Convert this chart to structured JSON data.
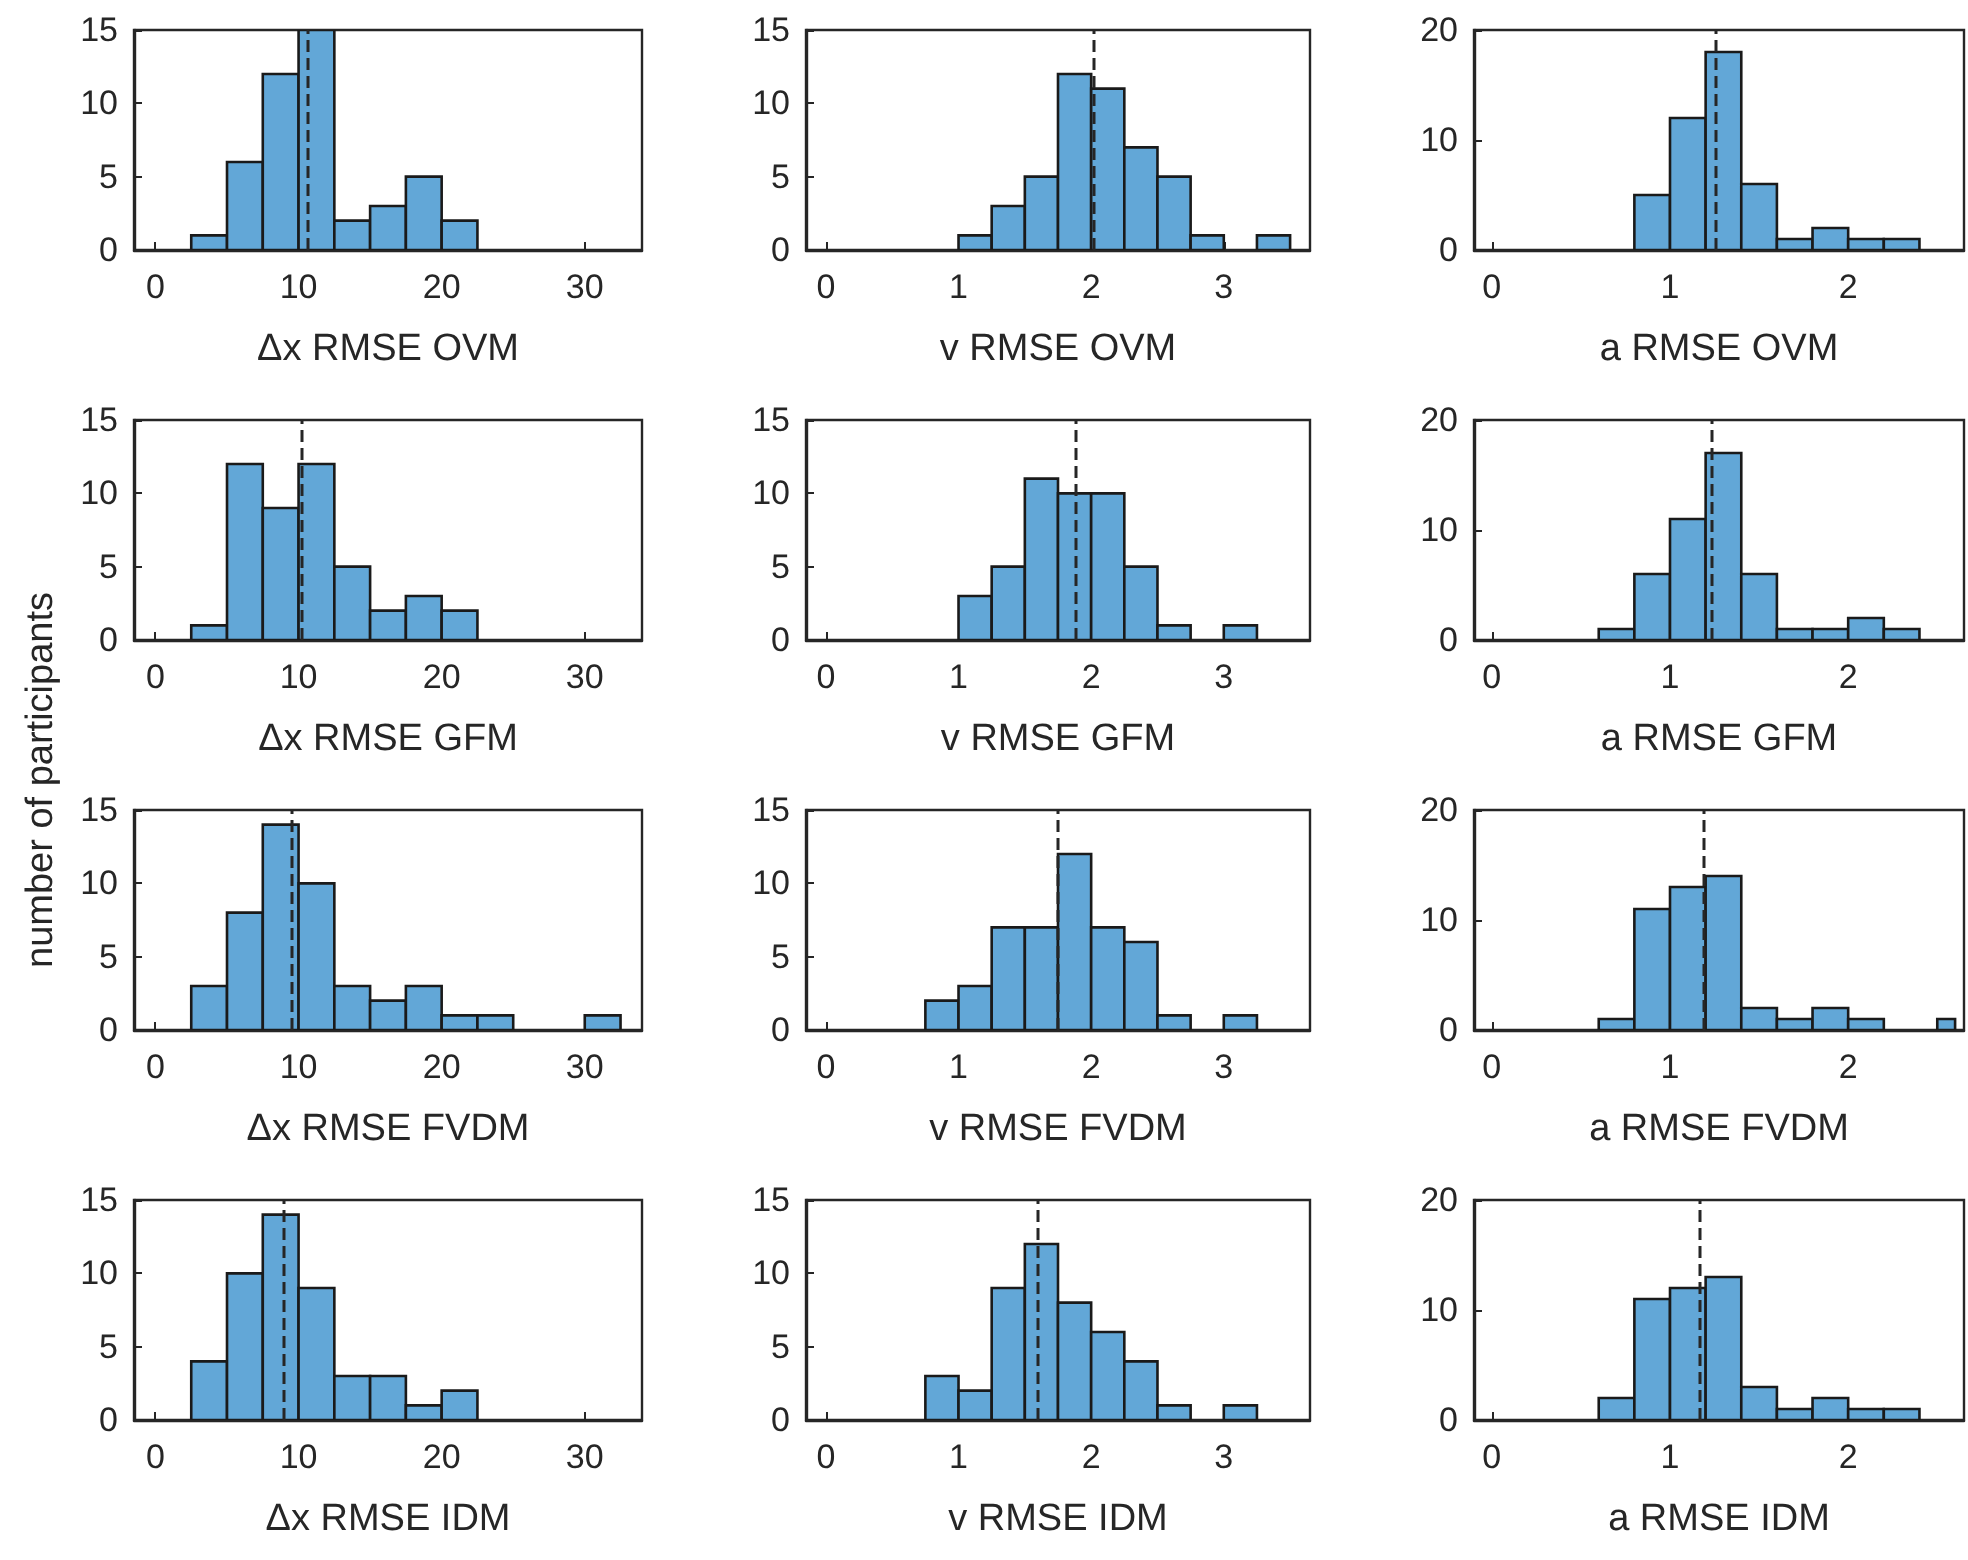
{
  "chart_data": [
    {
      "type": "histogram",
      "xlabel": "Δx RMSE OVM",
      "bins": [
        2.5,
        5,
        7.5,
        10,
        12.5,
        15,
        17.5,
        20,
        22.5
      ],
      "values": [
        1,
        6,
        12,
        15,
        2,
        3,
        5,
        2
      ],
      "color": "#62a7d7",
      "xlim": [
        -1.5,
        34
      ],
      "xticks": [
        0,
        10,
        20,
        30
      ],
      "ylim": [
        0,
        15
      ],
      "yticks": [
        0,
        5,
        10,
        15
      ],
      "ref_lines": [
        {
          "axis": "x",
          "value": 10.6,
          "line_style": "dashed",
          "color": "#262626"
        }
      ]
    },
    {
      "type": "histogram",
      "xlabel": "v RMSE OVM",
      "bins": [
        1,
        1.25,
        1.5,
        1.75,
        2,
        2.25,
        2.5,
        2.75,
        3,
        3.25,
        3.5
      ],
      "values": [
        1,
        3,
        5,
        12,
        11,
        7,
        5,
        1,
        0,
        1
      ],
      "color": "#62a7d7",
      "xlim": [
        -0.15,
        3.65
      ],
      "xticks": [
        0,
        1,
        2,
        3
      ],
      "ylim": [
        0,
        15
      ],
      "yticks": [
        0,
        5,
        10,
        15
      ],
      "ref_lines": [
        {
          "axis": "x",
          "value": 2.02,
          "line_style": "dashed",
          "color": "#262626"
        }
      ]
    },
    {
      "type": "histogram",
      "xlabel": "a RMSE OVM",
      "bins": [
        0.8,
        1,
        1.2,
        1.4,
        1.6,
        1.8,
        2,
        2.2,
        2.4
      ],
      "values": [
        5,
        12,
        18,
        6,
        1,
        2,
        1,
        1
      ],
      "color": "#62a7d7",
      "xlim": [
        -0.1,
        2.65
      ],
      "xticks": [
        0,
        1,
        2
      ],
      "ylim": [
        0,
        20
      ],
      "yticks": [
        0,
        10,
        20
      ],
      "ref_lines": [
        {
          "axis": "x",
          "value": 1.26,
          "line_style": "dashed",
          "color": "#262626"
        }
      ]
    },
    {
      "type": "histogram",
      "xlabel": "Δx RMSE GFM",
      "bins": [
        2.5,
        5,
        7.5,
        10,
        12.5,
        15,
        17.5,
        20,
        22.5
      ],
      "values": [
        1,
        12,
        9,
        12,
        5,
        2,
        3,
        2
      ],
      "color": "#62a7d7",
      "xlim": [
        -1.5,
        34
      ],
      "xticks": [
        0,
        10,
        20,
        30
      ],
      "ylim": [
        0,
        15
      ],
      "yticks": [
        0,
        5,
        10,
        15
      ],
      "ref_lines": [
        {
          "axis": "x",
          "value": 10.2,
          "line_style": "dashed",
          "color": "#262626"
        }
      ]
    },
    {
      "type": "histogram",
      "xlabel": "v RMSE GFM",
      "bins": [
        1,
        1.25,
        1.5,
        1.75,
        2,
        2.25,
        2.5,
        2.75,
        3,
        3.25
      ],
      "values": [
        3,
        5,
        11,
        10,
        10,
        5,
        1,
        0,
        1
      ],
      "color": "#62a7d7",
      "xlim": [
        -0.15,
        3.65
      ],
      "xticks": [
        0,
        1,
        2,
        3
      ],
      "ylim": [
        0,
        15
      ],
      "yticks": [
        0,
        5,
        10,
        15
      ],
      "ref_lines": [
        {
          "axis": "x",
          "value": 1.88,
          "line_style": "dashed",
          "color": "#262626"
        }
      ]
    },
    {
      "type": "histogram",
      "xlabel": "a RMSE GFM",
      "bins": [
        0.6,
        0.8,
        1,
        1.2,
        1.4,
        1.6,
        1.8,
        2,
        2.2,
        2.4
      ],
      "values": [
        1,
        6,
        11,
        17,
        6,
        1,
        1,
        2,
        1
      ],
      "color": "#62a7d7",
      "xlim": [
        -0.1,
        2.65
      ],
      "xticks": [
        0,
        1,
        2
      ],
      "ylim": [
        0,
        20
      ],
      "yticks": [
        0,
        10,
        20
      ],
      "ref_lines": [
        {
          "axis": "x",
          "value": 1.23,
          "line_style": "dashed",
          "color": "#262626"
        }
      ]
    },
    {
      "type": "histogram",
      "xlabel": "Δx RMSE FVDM",
      "ylabel": "number of participants",
      "bins": [
        2.5,
        5,
        7.5,
        10,
        12.5,
        15,
        17.5,
        20,
        22.5,
        25,
        27.5,
        30,
        32.5
      ],
      "values": [
        3,
        8,
        14,
        10,
        3,
        2,
        3,
        1,
        1,
        0,
        0,
        1
      ],
      "color": "#62a7d7",
      "xlim": [
        -1.5,
        34
      ],
      "xticks": [
        0,
        10,
        20,
        30
      ],
      "ylim": [
        0,
        15
      ],
      "yticks": [
        0,
        5,
        10,
        15
      ],
      "ref_lines": [
        {
          "axis": "x",
          "value": 9.5,
          "line_style": "dashed",
          "color": "#262626"
        }
      ]
    },
    {
      "type": "histogram",
      "xlabel": "v RMSE FVDM",
      "bins": [
        0.75,
        1,
        1.25,
        1.5,
        1.75,
        2,
        2.25,
        2.5,
        2.75,
        3,
        3.25
      ],
      "values": [
        2,
        3,
        7,
        7,
        12,
        7,
        6,
        1,
        0,
        1
      ],
      "color": "#62a7d7",
      "xlim": [
        -0.15,
        3.65
      ],
      "xticks": [
        0,
        1,
        2,
        3
      ],
      "ylim": [
        0,
        15
      ],
      "yticks": [
        0,
        5,
        10,
        15
      ],
      "ref_lines": [
        {
          "axis": "x",
          "value": 1.75,
          "line_style": "dashed",
          "color": "#262626"
        }
      ]
    },
    {
      "type": "histogram",
      "xlabel": "a RMSE FVDM",
      "bins": [
        0.6,
        0.8,
        1,
        1.2,
        1.4,
        1.6,
        1.8,
        2,
        2.2,
        2.5,
        2.6
      ],
      "values": [
        1,
        11,
        13,
        14,
        2,
        1,
        2,
        1,
        0,
        1
      ],
      "color": "#62a7d7",
      "xlim": [
        -0.1,
        2.65
      ],
      "xticks": [
        0,
        1,
        2
      ],
      "ylim": [
        0,
        20
      ],
      "yticks": [
        0,
        10,
        20
      ],
      "ref_lines": [
        {
          "axis": "x",
          "value": 1.19,
          "line_style": "dashed",
          "color": "#262626"
        }
      ]
    },
    {
      "type": "histogram",
      "xlabel": "Δx RMSE IDM",
      "bins": [
        2.5,
        5,
        7.5,
        10,
        12.5,
        15,
        17.5,
        20,
        22.5
      ],
      "values": [
        4,
        10,
        14,
        9,
        3,
        3,
        1,
        2
      ],
      "color": "#62a7d7",
      "xlim": [
        -1.5,
        34
      ],
      "xticks": [
        0,
        10,
        20,
        30
      ],
      "ylim": [
        0,
        15
      ],
      "yticks": [
        0,
        5,
        10,
        15
      ],
      "ref_lines": [
        {
          "axis": "x",
          "value": 8.9,
          "line_style": "dashed",
          "color": "#262626"
        }
      ]
    },
    {
      "type": "histogram",
      "xlabel": "v RMSE IDM",
      "bins": [
        0.75,
        1,
        1.25,
        1.5,
        1.75,
        2,
        2.25,
        2.5,
        2.75,
        3,
        3.25
      ],
      "values": [
        3,
        2,
        9,
        12,
        8,
        6,
        4,
        1,
        0,
        1
      ],
      "color": "#62a7d7",
      "xlim": [
        -0.15,
        3.65
      ],
      "xticks": [
        0,
        1,
        2,
        3
      ],
      "ylim": [
        0,
        15
      ],
      "yticks": [
        0,
        5,
        10,
        15
      ],
      "ref_lines": [
        {
          "axis": "x",
          "value": 1.6,
          "line_style": "dashed",
          "color": "#262626"
        }
      ]
    },
    {
      "type": "histogram",
      "xlabel": "a RMSE IDM",
      "bins": [
        0.6,
        0.8,
        1,
        1.2,
        1.4,
        1.6,
        1.8,
        2,
        2.2,
        2.4
      ],
      "values": [
        2,
        11,
        12,
        13,
        3,
        1,
        2,
        1,
        1
      ],
      "color": "#62a7d7",
      "xlim": [
        -0.1,
        2.65
      ],
      "xticks": [
        0,
        1,
        2
      ],
      "ylim": [
        0,
        20
      ],
      "yticks": [
        0,
        10,
        20
      ],
      "ref_lines": [
        {
          "axis": "x",
          "value": 1.17,
          "line_style": "dashed",
          "color": "#262626"
        }
      ]
    }
  ]
}
